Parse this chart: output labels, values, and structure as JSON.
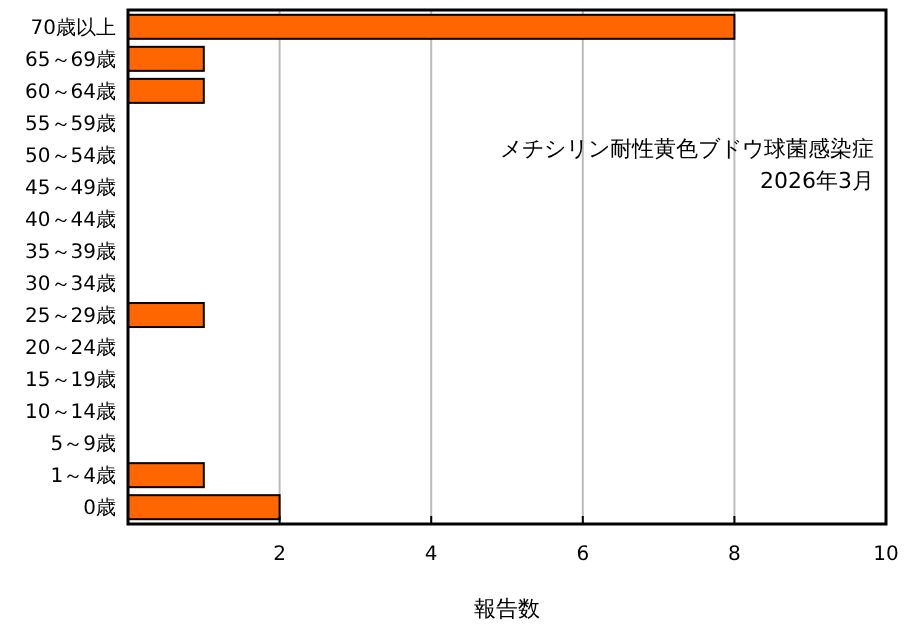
{
  "chart_data": {
    "type": "bar",
    "orientation": "horizontal",
    "categories": [
      "70歳以上",
      "65～69歳",
      "60～64歳",
      "55～59歳",
      "50～54歳",
      "45～49歳",
      "40～44歳",
      "35～39歳",
      "30～34歳",
      "25～29歳",
      "20～24歳",
      "15～19歳",
      "10～14歳",
      "5～9歳",
      "1～4歳",
      "0歳"
    ],
    "values": [
      8,
      1,
      1,
      0,
      0,
      0,
      0,
      0,
      0,
      1,
      0,
      0,
      0,
      0,
      1,
      2
    ],
    "color": "#ff6600",
    "xlim": [
      0,
      10
    ],
    "xticks": [
      2,
      4,
      6,
      8,
      10
    ],
    "grid": "x",
    "xlabel": "報告数",
    "annotations": [
      "メチシリン耐性黄色ブドウ球菌感染症",
      "2026年3月"
    ]
  }
}
